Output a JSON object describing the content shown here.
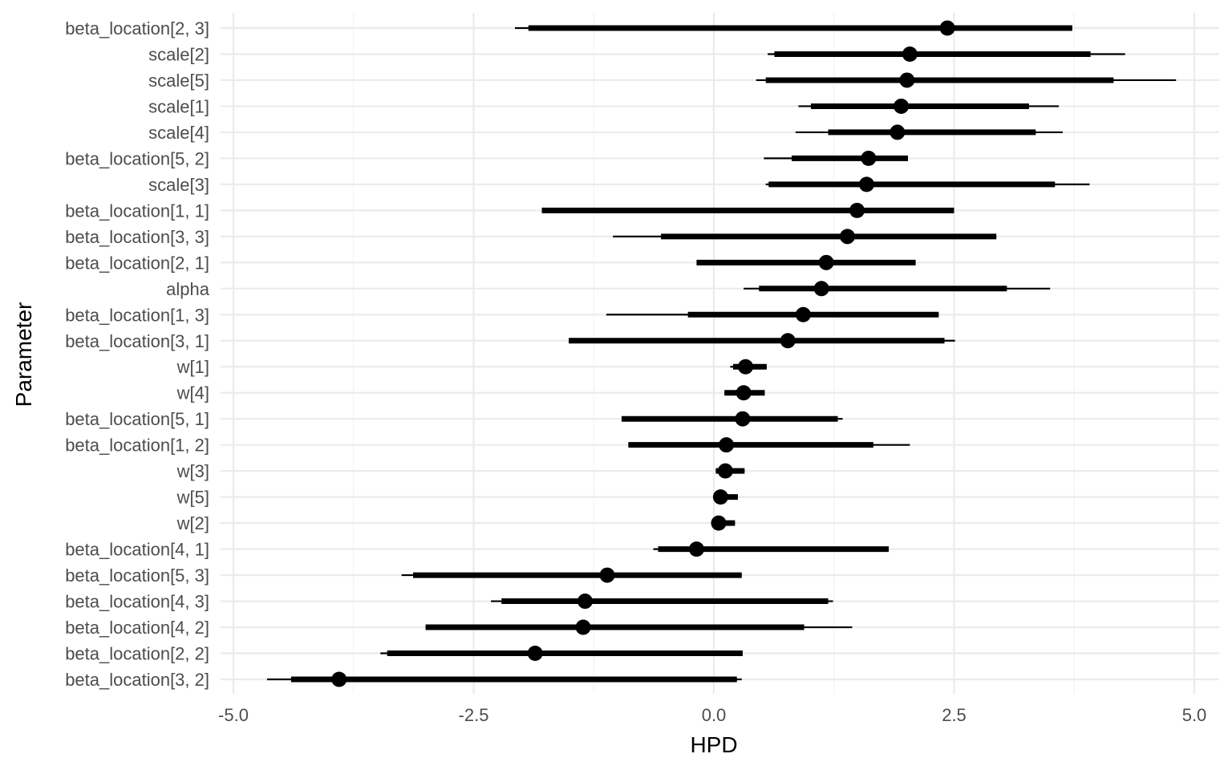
{
  "chart_data": {
    "type": "forest",
    "xlabel": "HPD",
    "ylabel": "Parameter",
    "xlim": [
      -5.0,
      5.0
    ],
    "xticks": [
      -5.0,
      -2.5,
      0.0,
      2.5,
      5.0
    ],
    "xtick_labels": [
      "-5.0",
      "-2.5",
      "0.0",
      "2.5",
      "5.0"
    ],
    "grid": true,
    "colors": {
      "mark": "#000000",
      "grid": "#ebebeb",
      "tick_text": "#4d4d4d"
    },
    "rows": [
      {
        "label": "beta_location[2, 3]",
        "median": 2.43,
        "inner": [
          -1.93,
          3.73
        ],
        "outer": [
          -2.07,
          3.73
        ]
      },
      {
        "label": "scale[2]",
        "median": 2.04,
        "inner": [
          0.63,
          3.92
        ],
        "outer": [
          0.56,
          4.28
        ]
      },
      {
        "label": "scale[5]",
        "median": 2.01,
        "inner": [
          0.54,
          4.16
        ],
        "outer": [
          0.44,
          4.81
        ]
      },
      {
        "label": "scale[1]",
        "median": 1.95,
        "inner": [
          1.01,
          3.28
        ],
        "outer": [
          0.88,
          3.59
        ]
      },
      {
        "label": "scale[4]",
        "median": 1.91,
        "inner": [
          1.19,
          3.35
        ],
        "outer": [
          0.85,
          3.63
        ]
      },
      {
        "label": "beta_location[5, 2]",
        "median": 1.61,
        "inner": [
          0.81,
          2.02
        ],
        "outer": [
          0.52,
          2.02
        ]
      },
      {
        "label": "scale[3]",
        "median": 1.59,
        "inner": [
          0.57,
          3.55
        ],
        "outer": [
          0.54,
          3.91
        ]
      },
      {
        "label": "beta_location[1, 1]",
        "median": 1.49,
        "inner": [
          -1.79,
          2.5
        ],
        "outer": [
          -1.79,
          2.5
        ]
      },
      {
        "label": "beta_location[3, 3]",
        "median": 1.39,
        "inner": [
          -0.55,
          2.94
        ],
        "outer": [
          -1.05,
          2.94
        ]
      },
      {
        "label": "beta_location[2, 1]",
        "median": 1.17,
        "inner": [
          -0.18,
          2.1
        ],
        "outer": [
          -0.18,
          2.1
        ]
      },
      {
        "label": "alpha",
        "median": 1.12,
        "inner": [
          0.47,
          3.05
        ],
        "outer": [
          0.31,
          3.5
        ]
      },
      {
        "label": "beta_location[1, 3]",
        "median": 0.93,
        "inner": [
          -0.27,
          2.34
        ],
        "outer": [
          -1.12,
          2.34
        ]
      },
      {
        "label": "beta_location[3, 1]",
        "median": 0.77,
        "inner": [
          -1.51,
          2.4
        ],
        "outer": [
          -1.51,
          2.51
        ]
      },
      {
        "label": "w[1]",
        "median": 0.33,
        "inner": [
          0.2,
          0.55
        ],
        "outer": [
          0.17,
          0.55
        ]
      },
      {
        "label": "w[4]",
        "median": 0.31,
        "inner": [
          0.11,
          0.53
        ],
        "outer": [
          0.11,
          0.53
        ]
      },
      {
        "label": "beta_location[5, 1]",
        "median": 0.3,
        "inner": [
          -0.96,
          1.29
        ],
        "outer": [
          -0.96,
          1.34
        ]
      },
      {
        "label": "beta_location[1, 2]",
        "median": 0.13,
        "inner": [
          -0.89,
          1.66
        ],
        "outer": [
          -0.89,
          2.04
        ]
      },
      {
        "label": "w[3]",
        "median": 0.12,
        "inner": [
          0.02,
          0.32
        ],
        "outer": [
          0.02,
          0.32
        ]
      },
      {
        "label": "w[5]",
        "median": 0.07,
        "inner": [
          0.07,
          0.25
        ],
        "outer": [
          0.07,
          0.25
        ]
      },
      {
        "label": "w[2]",
        "median": 0.05,
        "inner": [
          0.05,
          0.22
        ],
        "outer": [
          0.05,
          0.22
        ]
      },
      {
        "label": "beta_location[4, 1]",
        "median": -0.18,
        "inner": [
          -0.58,
          1.82
        ],
        "outer": [
          -0.63,
          1.82
        ]
      },
      {
        "label": "beta_location[5, 3]",
        "median": -1.11,
        "inner": [
          -3.13,
          0.29
        ],
        "outer": [
          -3.25,
          0.29
        ]
      },
      {
        "label": "beta_location[4, 3]",
        "median": -1.34,
        "inner": [
          -2.21,
          1.19
        ],
        "outer": [
          -2.32,
          1.24
        ]
      },
      {
        "label": "beta_location[4, 2]",
        "median": -1.36,
        "inner": [
          -3.0,
          0.94
        ],
        "outer": [
          -3.0,
          1.44
        ]
      },
      {
        "label": "beta_location[2, 2]",
        "median": -1.86,
        "inner": [
          -3.4,
          0.3
        ],
        "outer": [
          -3.47,
          0.3
        ]
      },
      {
        "label": "beta_location[3, 2]",
        "median": -3.9,
        "inner": [
          -4.4,
          0.24
        ],
        "outer": [
          -4.65,
          0.29
        ]
      }
    ]
  }
}
